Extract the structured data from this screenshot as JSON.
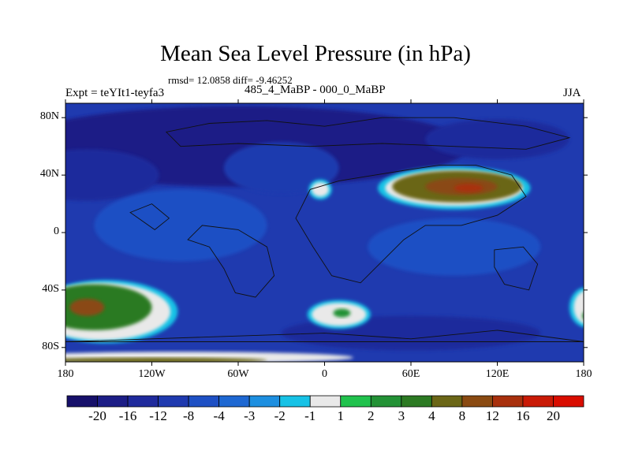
{
  "chart_data": {
    "type": "heatmap",
    "title": "Mean Sea Level Pressure (in hPa)",
    "stats_text": "rmsd= 12.0858 diff= -9.46252",
    "left_label": "Expt = teYIt1-teyfa3",
    "center_label": "485_4_MaBP - 000_0_MaBP",
    "right_label": "JJA",
    "x_range": [
      -180,
      180
    ],
    "y_range": [
      -90,
      90
    ],
    "x_ticks": [
      {
        "value": -180,
        "label": "180"
      },
      {
        "value": -120,
        "label": "120W"
      },
      {
        "value": -60,
        "label": "60W"
      },
      {
        "value": 0,
        "label": "0"
      },
      {
        "value": 60,
        "label": "60E"
      },
      {
        "value": 120,
        "label": "120E"
      },
      {
        "value": 180,
        "label": "180"
      }
    ],
    "y_ticks": [
      {
        "value": 80,
        "label": "80N"
      },
      {
        "value": 40,
        "label": "40N"
      },
      {
        "value": 0,
        "label": "0"
      },
      {
        "value": -40,
        "label": "40S"
      },
      {
        "value": -80,
        "label": "80S"
      }
    ],
    "colorbar": {
      "levels": [
        -20,
        -16,
        -12,
        -8,
        -4,
        -3,
        -2,
        -1,
        1,
        2,
        3,
        4,
        8,
        12,
        16,
        20
      ],
      "labels": [
        "-20",
        "-16",
        "-12",
        "-8",
        "-4",
        "-3",
        "-2",
        "-1",
        "1",
        "2",
        "3",
        "4",
        "8",
        "12",
        "16",
        "20"
      ],
      "colors": [
        "#16106a",
        "#1c1d86",
        "#1f2a9c",
        "#1f3aaf",
        "#1e50c4",
        "#1e68d2",
        "#1d8fe0",
        "#17c2e6",
        "#e9e9e9",
        "#21c24d",
        "#239236",
        "#2c7a23",
        "#6b6617",
        "#8a4a12",
        "#a8300d",
        "#c91a06",
        "#d90d00"
      ]
    },
    "regions": [
      {
        "name": "background",
        "lon": 0,
        "lat": 0,
        "rlon": 360,
        "rlat": 180,
        "value": -9
      },
      {
        "name": "arctic-low",
        "lon": -60,
        "lat": 60,
        "rlon": 160,
        "rlat": 28,
        "value": -18
      },
      {
        "name": "north-pacific-low",
        "lon": -165,
        "lat": 40,
        "rlon": 50,
        "rlat": 18,
        "value": -16
      },
      {
        "name": "north-atlantic-low",
        "lon": -30,
        "lat": 45,
        "rlon": 40,
        "rlat": 18,
        "value": -12
      },
      {
        "name": "siberia-low",
        "lon": 120,
        "lat": 65,
        "rlon": 50,
        "rlat": 14,
        "value": -14
      },
      {
        "name": "tropical-west",
        "lon": -100,
        "lat": 5,
        "rlon": 60,
        "rlat": 25,
        "value": -6
      },
      {
        "name": "tropical-east",
        "lon": 90,
        "lat": -10,
        "rlon": 60,
        "rlat": 20,
        "value": -6
      },
      {
        "name": "south-belt-low",
        "lon": 60,
        "lat": -70,
        "rlon": 90,
        "rlat": 12,
        "value": -14
      },
      {
        "name": "asia-ring",
        "lon": 90,
        "lat": 31,
        "rlon": 53,
        "rlat": 15,
        "value": -2
      },
      {
        "name": "asia-edge",
        "lon": 90,
        "lat": 31,
        "rlon": 48,
        "rlat": 12.5,
        "value": 0
      },
      {
        "name": "asia-high",
        "lon": 92,
        "lat": 32,
        "rlon": 45,
        "rlat": 11,
        "value": 4
      },
      {
        "name": "asia-core",
        "lon": 95,
        "lat": 32,
        "rlon": 25,
        "rlat": 6,
        "value": 10
      },
      {
        "name": "asia-peak",
        "lon": 100,
        "lat": 31,
        "rlon": 10,
        "rlat": 3,
        "value": 14
      },
      {
        "name": "europe-ring",
        "lon": -3,
        "lat": 30,
        "rlon": 8,
        "rlat": 7,
        "value": -2
      },
      {
        "name": "europe-spot",
        "lon": -3,
        "lat": 30,
        "rlon": 6,
        "rlat": 5,
        "value": 0
      },
      {
        "name": "south-pacific-ring",
        "lon": -152,
        "lat": -55,
        "rlon": 50,
        "rlat": 22,
        "value": -2
      },
      {
        "name": "south-pacific-edge",
        "lon": -155,
        "lat": -55,
        "rlon": 48,
        "rlat": 20,
        "value": 0
      },
      {
        "name": "south-pacific-high",
        "lon": -160,
        "lat": -52,
        "rlon": 40,
        "rlat": 16,
        "value": 3
      },
      {
        "name": "south-pacific-core",
        "lon": -165,
        "lat": -52,
        "rlon": 12,
        "rlat": 6,
        "value": 9
      },
      {
        "name": "south-atlantic-ring",
        "lon": 10,
        "lat": -57,
        "rlon": 22,
        "rlat": 10,
        "value": -2
      },
      {
        "name": "south-atlantic-edge",
        "lon": 10,
        "lat": -57,
        "rlon": 19,
        "rlat": 8,
        "value": 0
      },
      {
        "name": "south-atlantic-high",
        "lon": 12,
        "lat": -56,
        "rlon": 6,
        "rlat": 3,
        "value": 2
      },
      {
        "name": "far-east-south-ring",
        "lon": 182,
        "lat": -52,
        "rlon": 12,
        "rlat": 14,
        "value": -2
      },
      {
        "name": "far-east-south-edge",
        "lon": 183,
        "lat": -52,
        "rlon": 10,
        "rlat": 12,
        "value": 0
      },
      {
        "name": "far-east-south-high",
        "lon": 185,
        "lat": -58,
        "rlon": 6,
        "rlat": 4,
        "value": 2
      },
      {
        "name": "south-pole-edge",
        "lon": -100,
        "lat": -87,
        "rlon": 120,
        "rlat": 4,
        "value": 0
      },
      {
        "name": "south-pole-high",
        "lon": -120,
        "lat": -89,
        "rlon": 80,
        "rlat": 2,
        "value": 4
      }
    ]
  }
}
